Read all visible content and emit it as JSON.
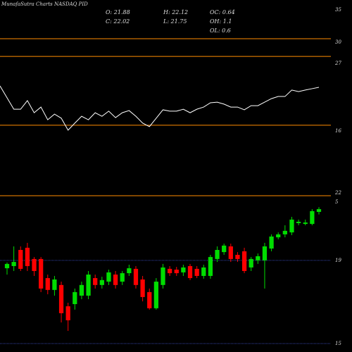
{
  "chart_data": [
    {
      "type": "line",
      "title": "MunafaSutra Charts NASDAQ PID",
      "values": [
        56.1,
        44.2,
        44.2,
        48.6,
        42.4,
        45.3,
        38.8,
        41.7,
        39.6,
        33.5,
        37.1,
        40.6,
        38.8,
        42.4,
        40.6,
        43.2,
        39.9,
        42.4,
        43.5,
        40.6,
        37.1,
        35.3,
        39.6,
        43.9,
        43.2,
        43.2,
        44.2,
        42.4,
        44.2,
        45.3,
        47.5,
        47.8,
        46.8,
        45.3,
        45.3,
        43.9,
        46.0,
        46.0,
        47.8,
        49.6,
        50.7,
        50.7,
        54.0,
        53.2,
        54.0,
        54.7,
        55.4
      ],
      "color": "#ffffff",
      "ylim": [
        0,
        100
      ],
      "hlines": [
        80.2,
        71.2,
        36.0,
        0
      ],
      "hline_color": "#ff8c00",
      "axis_labels": [
        "35",
        "30",
        "27",
        "16",
        "22",
        "5"
      ]
    },
    {
      "type": "candlestick",
      "info": [
        "O: 21.88",
        "H: 22.12",
        "OC: 0.64",
        "C: 22.02",
        "L: 21.75",
        "OH: 1.1",
        "OL: 0.6"
      ],
      "open": [
        19.02,
        19.13,
        19.95,
        20.06,
        19.49,
        19.49,
        18.52,
        17.92,
        18.17,
        17.09,
        17.2,
        17.63,
        17.63,
        18.52,
        18.17,
        18.34,
        18.7,
        18.34,
        18.77,
        18.99,
        18.45,
        17.81,
        16.99,
        18.17,
        18.99,
        18.95,
        18.81,
        19.13,
        18.99,
        18.63,
        18.63,
        19.49,
        19.84,
        20.13,
        19.7,
        19.88,
        19.06,
        19.42,
        19.42,
        20.02,
        20.59,
        20.74,
        20.84,
        21.31,
        21.27,
        21.27,
        21.88
      ],
      "high": [
        19.31,
        20.13,
        20.13,
        20.31,
        19.59,
        19.59,
        18.7,
        18.63,
        18.34,
        17.27,
        17.99,
        18.34,
        18.88,
        18.7,
        18.59,
        18.95,
        18.88,
        18.88,
        19.2,
        19.13,
        18.63,
        17.99,
        18.52,
        19.24,
        19.13,
        19.09,
        19.2,
        19.24,
        19.13,
        19.2,
        19.7,
        20.13,
        20.27,
        20.27,
        19.84,
        20.06,
        19.59,
        19.77,
        20.31,
        20.74,
        20.84,
        21.2,
        21.63,
        21.49,
        21.49,
        22.02,
        22.12
      ],
      "low": [
        18.7,
        18.88,
        18.88,
        18.88,
        18.63,
        17.81,
        17.7,
        17.63,
        16.27,
        15.84,
        16.92,
        17.45,
        17.45,
        17.99,
        17.99,
        18.17,
        17.99,
        18.17,
        18.63,
        17.99,
        17.34,
        16.92,
        16.92,
        17.99,
        18.63,
        18.63,
        18.63,
        18.42,
        18.52,
        18.49,
        18.49,
        19.34,
        19.7,
        19.34,
        19.34,
        18.77,
        18.88,
        19.24,
        17.99,
        19.88,
        20.49,
        20.59,
        20.7,
        21.2,
        21.2,
        21.2,
        21.75
      ],
      "close": [
        19.24,
        19.34,
        18.99,
        19.13,
        18.88,
        17.99,
        17.92,
        18.45,
        16.74,
        16.38,
        17.81,
        18.17,
        18.7,
        18.17,
        18.42,
        18.81,
        18.17,
        18.77,
        19.02,
        18.17,
        17.56,
        16.99,
        18.34,
        19.06,
        18.77,
        18.77,
        19.06,
        18.52,
        18.63,
        19.06,
        19.59,
        19.95,
        20.17,
        19.49,
        19.49,
        18.88,
        19.49,
        19.63,
        20.13,
        20.63,
        20.74,
        20.92,
        21.49,
        21.38,
        21.34,
        21.92,
        22.02
      ],
      "up_color": "#00dd00",
      "down_color": "#ff0000",
      "ylim": [
        14.77,
        22.63
      ],
      "yticks": [
        {
          "value": 19.42,
          "label": "19"
        },
        {
          "value": 15.2,
          "label": "15"
        }
      ],
      "grid_color": "#3344aa"
    }
  ]
}
